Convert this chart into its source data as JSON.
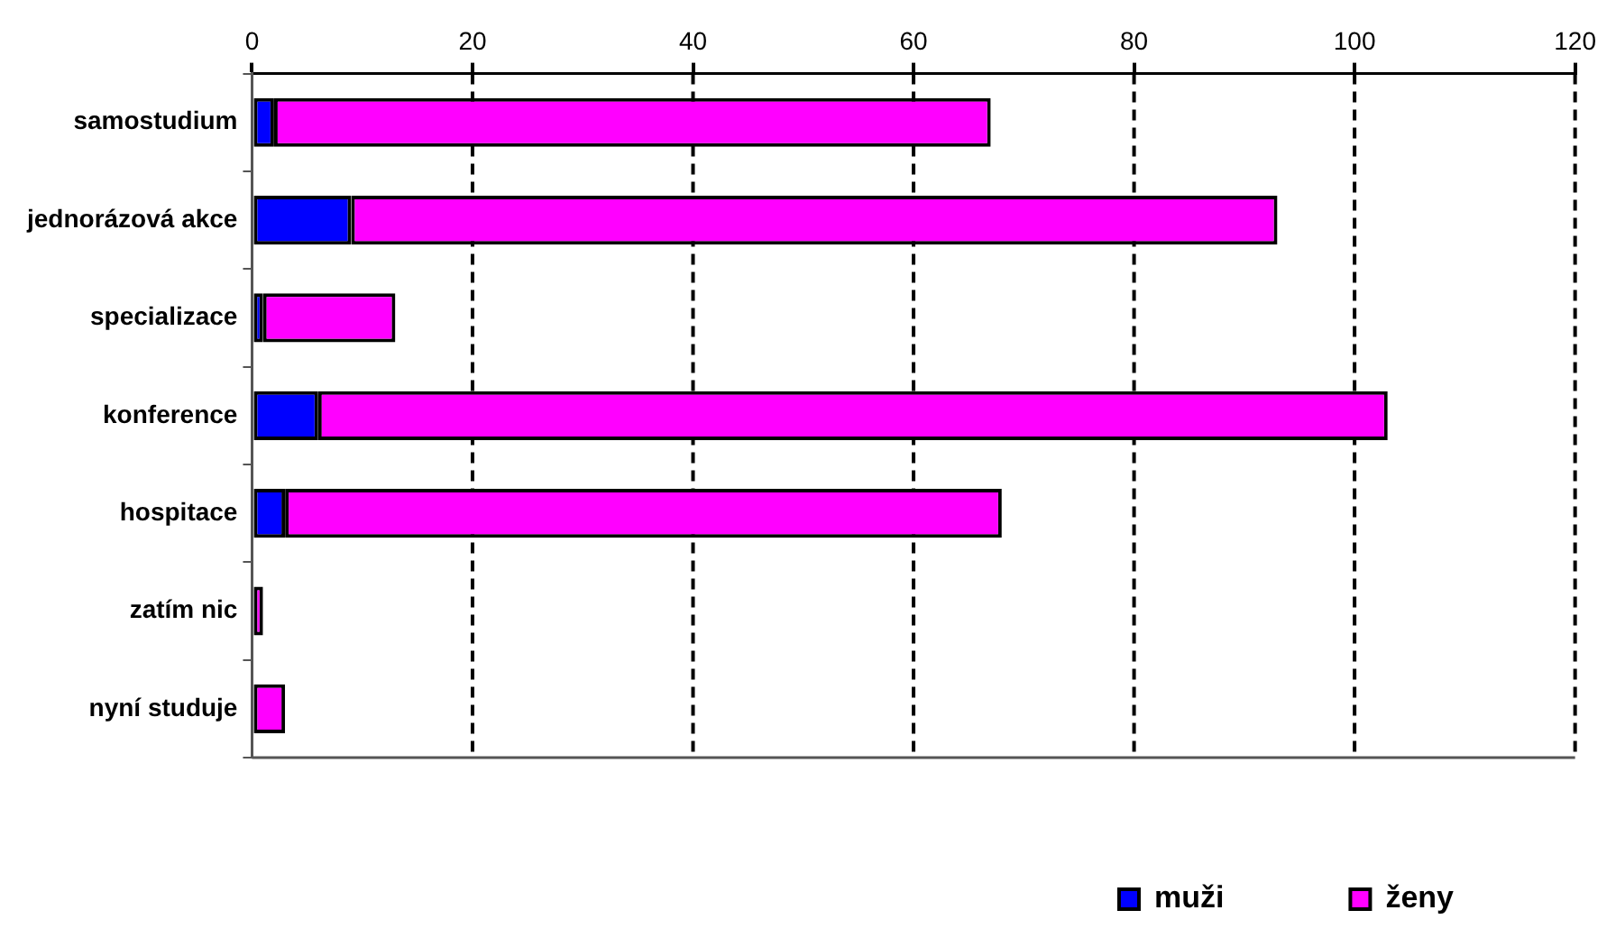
{
  "chart_data": {
    "type": "bar",
    "orientation": "horizontal",
    "stacked": true,
    "categories": [
      "samostudium",
      "jednorázová akce",
      "specializace",
      "konference",
      "hospitace",
      "zatím nic",
      "nyní studuje"
    ],
    "series": [
      {
        "name": "muži",
        "color": "#0000ff",
        "values": [
          2,
          9,
          1,
          6,
          3,
          0,
          0
        ]
      },
      {
        "name": "ženy",
        "color": "#ff00ff",
        "values": [
          65,
          84,
          12,
          97,
          65,
          1,
          3
        ]
      }
    ],
    "xlim": [
      0,
      120
    ],
    "xticks": [
      0,
      20,
      40,
      60,
      80,
      100,
      120
    ],
    "grid": "x",
    "legend": "bottom right"
  }
}
